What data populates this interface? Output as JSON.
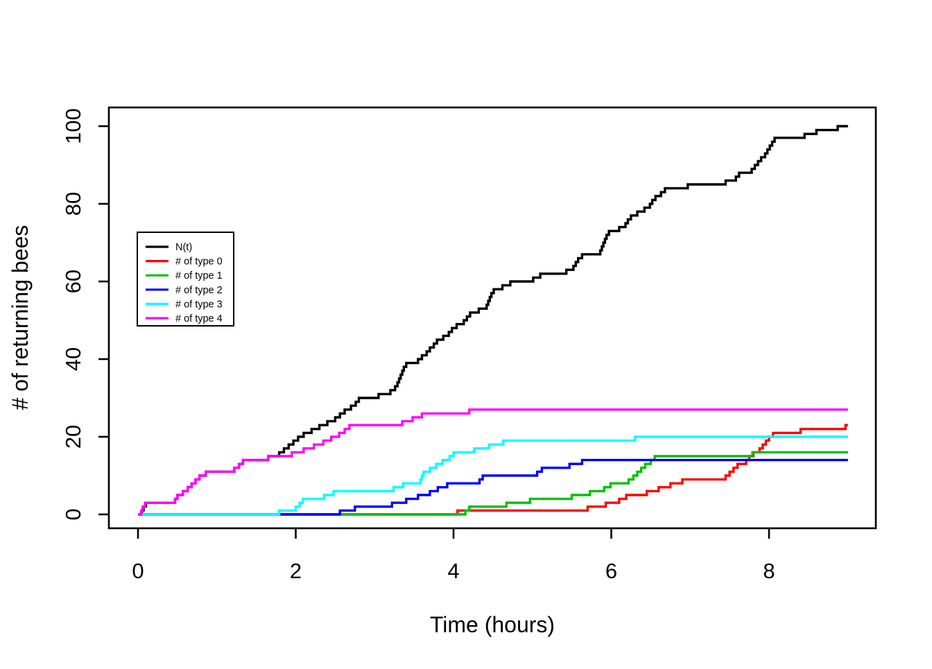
{
  "chart_data": {
    "type": "line",
    "subtype": "step",
    "title": "",
    "xlabel": "Time (hours)",
    "ylabel": "# of returning bees",
    "xlim": [
      0,
      9.35
    ],
    "ylim": [
      0,
      104
    ],
    "x_ticks": [
      0,
      2,
      4,
      6,
      8
    ],
    "y_ticks": [
      0,
      20,
      40,
      60,
      80,
      100
    ],
    "grid": "off",
    "legend_position": "inside-left-middle",
    "end_time": 9.0,
    "series": [
      {
        "name": "N(t)",
        "color": "#000000",
        "final_value": 100,
        "points": [
          [
            0,
            0
          ],
          [
            0.05,
            1
          ],
          [
            0.07,
            2
          ],
          [
            0.1,
            3
          ],
          [
            0.47,
            4
          ],
          [
            0.5,
            5
          ],
          [
            0.57,
            6
          ],
          [
            0.63,
            7
          ],
          [
            0.68,
            8
          ],
          [
            0.73,
            9
          ],
          [
            0.78,
            10
          ],
          [
            0.86,
            11
          ],
          [
            1.22,
            12
          ],
          [
            1.28,
            13
          ],
          [
            1.33,
            14
          ],
          [
            1.65,
            15
          ],
          [
            1.79,
            16
          ],
          [
            1.85,
            17
          ],
          [
            1.91,
            18
          ],
          [
            1.97,
            19
          ],
          [
            2.03,
            20
          ],
          [
            2.1,
            21
          ],
          [
            2.2,
            22
          ],
          [
            2.3,
            23
          ],
          [
            2.4,
            24
          ],
          [
            2.5,
            25
          ],
          [
            2.56,
            26
          ],
          [
            2.62,
            27
          ],
          [
            2.7,
            28
          ],
          [
            2.76,
            29
          ],
          [
            2.8,
            30
          ],
          [
            3.05,
            31
          ],
          [
            3.2,
            32
          ],
          [
            3.26,
            33
          ],
          [
            3.29,
            34
          ],
          [
            3.31,
            35
          ],
          [
            3.33,
            36
          ],
          [
            3.35,
            37
          ],
          [
            3.37,
            38
          ],
          [
            3.4,
            39
          ],
          [
            3.55,
            40
          ],
          [
            3.6,
            41
          ],
          [
            3.66,
            42
          ],
          [
            3.7,
            43
          ],
          [
            3.75,
            44
          ],
          [
            3.79,
            45
          ],
          [
            3.87,
            46
          ],
          [
            3.94,
            47
          ],
          [
            3.98,
            48
          ],
          [
            4.04,
            49
          ],
          [
            4.13,
            50
          ],
          [
            4.17,
            51
          ],
          [
            4.21,
            52
          ],
          [
            4.32,
            53
          ],
          [
            4.42,
            54
          ],
          [
            4.44,
            55
          ],
          [
            4.46,
            56
          ],
          [
            4.48,
            57
          ],
          [
            4.51,
            58
          ],
          [
            4.62,
            59
          ],
          [
            4.72,
            60
          ],
          [
            5.01,
            61
          ],
          [
            5.1,
            62
          ],
          [
            5.43,
            63
          ],
          [
            5.52,
            64
          ],
          [
            5.55,
            65
          ],
          [
            5.58,
            66
          ],
          [
            5.63,
            67
          ],
          [
            5.86,
            68
          ],
          [
            5.88,
            69
          ],
          [
            5.9,
            70
          ],
          [
            5.92,
            71
          ],
          [
            5.94,
            72
          ],
          [
            5.97,
            73
          ],
          [
            6.1,
            74
          ],
          [
            6.18,
            75
          ],
          [
            6.21,
            76
          ],
          [
            6.25,
            77
          ],
          [
            6.33,
            78
          ],
          [
            6.42,
            79
          ],
          [
            6.49,
            80
          ],
          [
            6.52,
            81
          ],
          [
            6.56,
            82
          ],
          [
            6.63,
            83
          ],
          [
            6.68,
            84
          ],
          [
            6.97,
            85
          ],
          [
            7.45,
            86
          ],
          [
            7.58,
            87
          ],
          [
            7.62,
            88
          ],
          [
            7.78,
            89
          ],
          [
            7.82,
            90
          ],
          [
            7.86,
            91
          ],
          [
            7.9,
            92
          ],
          [
            7.95,
            93
          ],
          [
            7.98,
            94
          ],
          [
            8.01,
            95
          ],
          [
            8.04,
            96
          ],
          [
            8.07,
            97
          ],
          [
            8.45,
            98
          ],
          [
            8.6,
            99
          ],
          [
            8.87,
            100
          ]
        ]
      },
      {
        "name": "# of type 0",
        "color": "#FF0000",
        "final_value": 23,
        "points": [
          [
            0,
            0
          ],
          [
            4.05,
            1
          ],
          [
            5.7,
            2
          ],
          [
            5.93,
            3
          ],
          [
            6.1,
            4
          ],
          [
            6.19,
            5
          ],
          [
            6.45,
            6
          ],
          [
            6.6,
            7
          ],
          [
            6.75,
            8
          ],
          [
            6.9,
            9
          ],
          [
            7.45,
            10
          ],
          [
            7.5,
            11
          ],
          [
            7.55,
            12
          ],
          [
            7.6,
            13
          ],
          [
            7.71,
            14
          ],
          [
            7.75,
            15
          ],
          [
            7.8,
            16
          ],
          [
            7.88,
            17
          ],
          [
            7.92,
            18
          ],
          [
            7.96,
            19
          ],
          [
            8.0,
            20
          ],
          [
            8.05,
            21
          ],
          [
            8.4,
            22
          ],
          [
            8.97,
            23
          ]
        ]
      },
      {
        "name": "# of type 1",
        "color": "#00C000",
        "final_value": 16,
        "points": [
          [
            0,
            0
          ],
          [
            4.15,
            1
          ],
          [
            4.2,
            2
          ],
          [
            4.67,
            3
          ],
          [
            4.97,
            4
          ],
          [
            5.5,
            5
          ],
          [
            5.73,
            6
          ],
          [
            5.91,
            7
          ],
          [
            5.99,
            8
          ],
          [
            6.22,
            9
          ],
          [
            6.28,
            10
          ],
          [
            6.33,
            11
          ],
          [
            6.38,
            12
          ],
          [
            6.43,
            13
          ],
          [
            6.5,
            14
          ],
          [
            6.55,
            15
          ],
          [
            7.79,
            16
          ]
        ]
      },
      {
        "name": "# of type 2",
        "color": "#0000FF",
        "final_value": 14,
        "points": [
          [
            0,
            0
          ],
          [
            2.56,
            1
          ],
          [
            2.75,
            2
          ],
          [
            3.22,
            3
          ],
          [
            3.4,
            4
          ],
          [
            3.55,
            5
          ],
          [
            3.7,
            6
          ],
          [
            3.8,
            7
          ],
          [
            3.92,
            8
          ],
          [
            4.33,
            9
          ],
          [
            4.37,
            10
          ],
          [
            5.06,
            11
          ],
          [
            5.12,
            12
          ],
          [
            5.47,
            13
          ],
          [
            5.63,
            14
          ]
        ]
      },
      {
        "name": "# of type 3",
        "color": "#00FFFF",
        "final_value": 20,
        "points": [
          [
            0,
            0
          ],
          [
            1.79,
            1
          ],
          [
            2.0,
            2
          ],
          [
            2.05,
            3
          ],
          [
            2.09,
            4
          ],
          [
            2.36,
            5
          ],
          [
            2.48,
            6
          ],
          [
            3.24,
            7
          ],
          [
            3.36,
            8
          ],
          [
            3.58,
            9
          ],
          [
            3.6,
            10
          ],
          [
            3.62,
            11
          ],
          [
            3.7,
            12
          ],
          [
            3.78,
            13
          ],
          [
            3.86,
            14
          ],
          [
            3.95,
            15
          ],
          [
            4.0,
            16
          ],
          [
            4.26,
            17
          ],
          [
            4.45,
            18
          ],
          [
            4.63,
            19
          ],
          [
            6.3,
            20
          ]
        ]
      },
      {
        "name": "# of type 4",
        "color": "#FF00FF",
        "final_value": 27,
        "points": [
          [
            0,
            0
          ],
          [
            0.04,
            1
          ],
          [
            0.06,
            2
          ],
          [
            0.09,
            3
          ],
          [
            0.47,
            4
          ],
          [
            0.5,
            5
          ],
          [
            0.57,
            6
          ],
          [
            0.63,
            7
          ],
          [
            0.68,
            8
          ],
          [
            0.73,
            9
          ],
          [
            0.78,
            10
          ],
          [
            0.86,
            11
          ],
          [
            1.22,
            12
          ],
          [
            1.28,
            13
          ],
          [
            1.33,
            14
          ],
          [
            1.65,
            15
          ],
          [
            1.95,
            16
          ],
          [
            2.1,
            17
          ],
          [
            2.23,
            18
          ],
          [
            2.35,
            19
          ],
          [
            2.45,
            20
          ],
          [
            2.55,
            21
          ],
          [
            2.62,
            22
          ],
          [
            2.68,
            23
          ],
          [
            3.35,
            24
          ],
          [
            3.48,
            25
          ],
          [
            3.6,
            26
          ],
          [
            4.2,
            27
          ]
        ]
      }
    ],
    "legend": {
      "entries": [
        {
          "label": "N(t)",
          "color": "#000000"
        },
        {
          "label": "# of type 0",
          "color": "#FF0000"
        },
        {
          "label": "# of type 1",
          "color": "#00C000"
        },
        {
          "label": "# of type 2",
          "color": "#0000FF"
        },
        {
          "label": "# of type 3",
          "color": "#00FFFF"
        },
        {
          "label": "# of type 4",
          "color": "#FF00FF"
        }
      ]
    }
  }
}
